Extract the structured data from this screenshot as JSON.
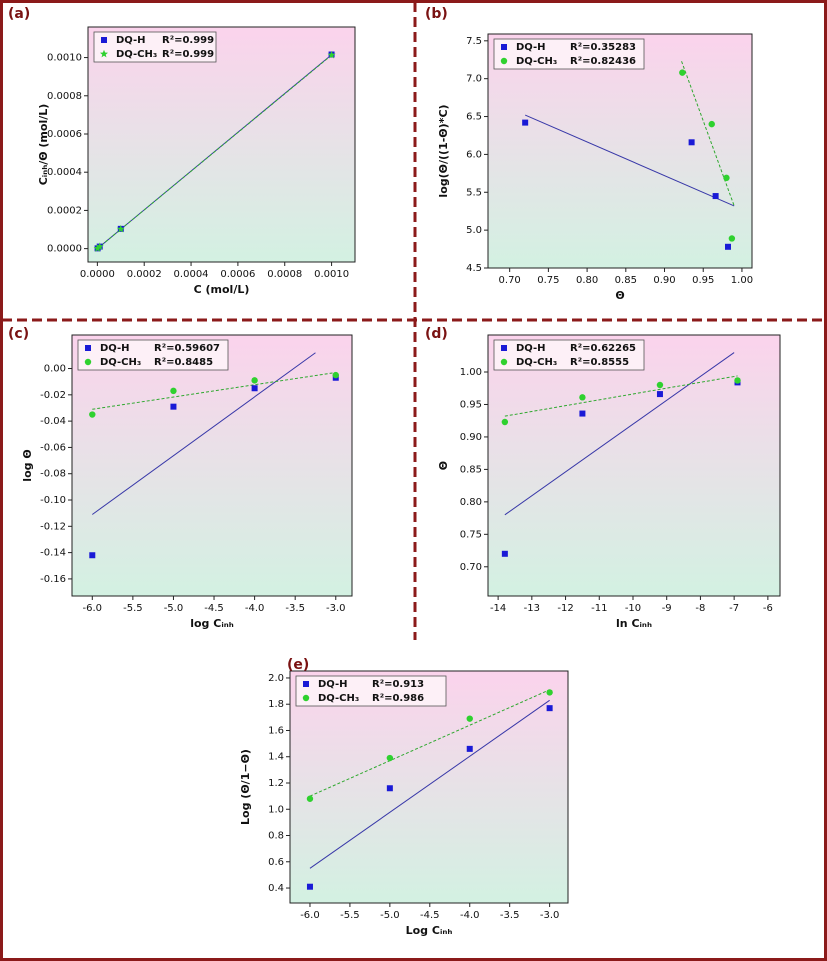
{
  "chart_data": [
    {
      "type": "scatter",
      "label": "(a)",
      "xlabel": "C (mol/L)",
      "ylabel": "Cᵢₙₕ/Θ (mol/L)",
      "xlim": [
        -4e-05,
        0.0011
      ],
      "ylim": [
        -7e-05,
        0.00116
      ],
      "xticks": [
        {
          "value": 0,
          "label": "0.0000"
        },
        {
          "value": 0.0002,
          "label": "0.0002"
        },
        {
          "value": 0.0004,
          "label": "0.0004"
        },
        {
          "value": 0.0006,
          "label": "0.0006"
        },
        {
          "value": 0.0008,
          "label": "0.0008"
        },
        {
          "value": 0.001,
          "label": "0.0010"
        }
      ],
      "yticks": [
        {
          "value": 0,
          "label": "0.0000"
        },
        {
          "value": 0.0002,
          "label": "0.0002"
        },
        {
          "value": 0.0004,
          "label": "0.0004"
        },
        {
          "value": 0.0006,
          "label": "0.0006"
        },
        {
          "value": 0.0008,
          "label": "0.0008"
        },
        {
          "value": 0.001,
          "label": "0.0010"
        }
      ],
      "series": [
        {
          "name": "DQ-H",
          "r2": "R²=0.999",
          "color": "#1a1ad6",
          "marker": "square",
          "line_color": "#3838a8",
          "x": [
            1e-06,
            1e-05,
            0.0001,
            0.001
          ],
          "values": [
            1.4e-06,
            1.07e-05,
            0.0001035,
            0.001016
          ],
          "fit": {
            "x": [
              1e-06,
              0.001
            ],
            "values": [
              1e-06,
              0.001015
            ]
          }
        },
        {
          "name": "DQ-CH₃",
          "r2": "R²=0.999",
          "color": "#2fd12f",
          "marker": "star",
          "line_color": "#2fa82f",
          "x": [
            1e-06,
            1e-05,
            0.0001,
            0.001
          ],
          "values": [
            1.1e-06,
            1.04e-05,
            0.000102,
            0.001013
          ],
          "fit": {
            "x": [
              1e-06,
              0.001
            ],
            "values": [
              1e-06,
              0.001013
            ]
          }
        }
      ]
    },
    {
      "type": "scatter",
      "label": "(b)",
      "xlabel": "Θ",
      "ylabel": "log(Θ/((1-Θ)*C)",
      "xlim": [
        0.672,
        1.013
      ],
      "ylim": [
        4.5,
        7.59
      ],
      "xticks": [
        {
          "value": 0.7,
          "label": "0.70"
        },
        0.75,
        {
          "value": 0.8,
          "label": "0.80"
        },
        0.85,
        {
          "value": 0.9,
          "label": "0.90"
        },
        0.95,
        {
          "value": 1,
          "label": "1.00"
        }
      ],
      "yticks": [
        4.5,
        {
          "value": 5,
          "label": "5.0"
        },
        5.5,
        {
          "value": 6,
          "label": "6.0"
        },
        6.5,
        {
          "value": 7,
          "label": "7.0"
        },
        7.5
      ],
      "series": [
        {
          "name": "DQ-H",
          "r2": "R²=0.35283",
          "color": "#1a1ad6",
          "marker": "square",
          "line_color": "#3838a8",
          "x": [
            0.72,
            0.935,
            0.966,
            0.982
          ],
          "values": [
            6.42,
            6.16,
            5.45,
            4.78
          ],
          "fit": {
            "x": [
              0.72,
              0.99
            ],
            "values": [
              6.52,
              5.32
            ]
          }
        },
        {
          "name": "DQ-CH₃",
          "r2": "R²=0.82436",
          "color": "#2fd12f",
          "marker": "circle",
          "line_color": "#2fa82f",
          "x": [
            0.923,
            0.961,
            0.98,
            0.987
          ],
          "values": [
            7.08,
            6.4,
            5.69,
            4.89
          ],
          "fit": {
            "x": [
              0.922,
              0.99
            ],
            "values": [
              7.23,
              5.32
            ]
          }
        }
      ]
    },
    {
      "type": "scatter",
      "label": "(c)",
      "xlabel": "log Cᵢₙₕ",
      "ylabel": "log Θ",
      "xlim": [
        -6.25,
        -2.8
      ],
      "ylim": [
        -0.173,
        0.0255
      ],
      "xticks": [
        {
          "value": -6,
          "label": "-6.0"
        },
        -5.5,
        {
          "value": -5,
          "label": "-5.0"
        },
        -4.5,
        {
          "value": -4,
          "label": "-4.0"
        },
        -3.5,
        {
          "value": -3,
          "label": "-3.0"
        }
      ],
      "yticks": [
        {
          "value": 0,
          "label": "0.00"
        },
        -0.02,
        -0.04,
        -0.06,
        -0.08,
        {
          "value": -0.1,
          "label": "-0.10"
        },
        -0.12,
        -0.14,
        {
          "value": -0.16,
          "label": "-0.16"
        }
      ],
      "series": [
        {
          "name": "DQ-H",
          "r2": "R²=0.59607",
          "color": "#1a1ad6",
          "marker": "square",
          "line_color": "#3838a8",
          "x": [
            -6,
            -5,
            -4,
            -3
          ],
          "values": [
            -0.142,
            -0.029,
            -0.015,
            -0.007
          ],
          "fit": {
            "x": [
              -6,
              -3.25
            ],
            "values": [
              -0.111,
              0.012
            ]
          }
        },
        {
          "name": "DQ-CH₃",
          "r2": "R²=0.8485",
          "color": "#2fd12f",
          "marker": "circle",
          "line_color": "#2fa82f",
          "x": [
            -6,
            -5,
            -4,
            -3
          ],
          "values": [
            -0.035,
            -0.017,
            -0.009,
            -0.005
          ],
          "fit": {
            "x": [
              -6,
              -3
            ],
            "values": [
              -0.031,
              -0.003
            ]
          }
        }
      ]
    },
    {
      "type": "scatter",
      "label": "(d)",
      "xlabel": "ln Cᵢₙₕ",
      "ylabel": "Θ",
      "xlim": [
        -14.3,
        -5.64
      ],
      "ylim": [
        0.655,
        1.057
      ],
      "xticks": [
        -14,
        -13,
        -12,
        -11,
        -10,
        -9,
        -8,
        -7,
        -6
      ],
      "yticks": [
        {
          "value": 0.7,
          "label": "0.70"
        },
        0.75,
        {
          "value": 0.8,
          "label": "0.80"
        },
        0.85,
        {
          "value": 0.9,
          "label": "0.90"
        },
        0.95,
        {
          "value": 1,
          "label": "1.00"
        }
      ],
      "series": [
        {
          "name": "DQ-H",
          "r2": "R²=0.62265",
          "color": "#1a1ad6",
          "marker": "square",
          "line_color": "#3838a8",
          "x": [
            -13.8,
            -11.5,
            -9.2,
            -6.9
          ],
          "values": [
            0.72,
            0.936,
            0.966,
            0.984
          ],
          "fit": {
            "x": [
              -13.8,
              -7
            ],
            "values": [
              0.78,
              1.03
            ]
          }
        },
        {
          "name": "DQ-CH₃",
          "r2": "R²=0.8555",
          "color": "#2fd12f",
          "marker": "circle",
          "line_color": "#2fa82f",
          "x": [
            -13.8,
            -11.5,
            -9.2,
            -6.9
          ],
          "values": [
            0.923,
            0.961,
            0.98,
            0.987
          ],
          "fit": {
            "x": [
              -13.8,
              -6.9
            ],
            "values": [
              0.932,
              0.994
            ]
          }
        }
      ]
    },
    {
      "type": "scatter",
      "label": "(e)",
      "xlabel": "Log Cᵢₙₕ",
      "ylabel": "Log (Θ/1−Θ)",
      "xlim": [
        -6.25,
        -2.77
      ],
      "ylim": [
        0.286,
        2.053
      ],
      "xticks": [
        {
          "value": -6,
          "label": "-6.0"
        },
        -5.5,
        {
          "value": -5,
          "label": "-5.0"
        },
        -4.5,
        {
          "value": -4,
          "label": "-4.0"
        },
        -3.5,
        {
          "value": -3,
          "label": "-3.0"
        }
      ],
      "yticks": [
        0.4,
        0.6,
        0.8,
        {
          "value": 1,
          "label": "1.0"
        },
        1.2,
        1.4,
        1.6,
        1.8,
        {
          "value": 2,
          "label": "2.0"
        }
      ],
      "series": [
        {
          "name": "DQ-H",
          "r2": "R²=0.913",
          "color": "#1a1ad6",
          "marker": "square",
          "line_color": "#3838a8",
          "x": [
            -6,
            -5,
            -4,
            -3
          ],
          "values": [
            0.41,
            1.16,
            1.46,
            1.77
          ],
          "fit": {
            "x": [
              -6,
              -3
            ],
            "values": [
              0.55,
              1.83
            ]
          }
        },
        {
          "name": "DQ-CH₃",
          "r2": "R²=0.986",
          "color": "#2fd12f",
          "marker": "circle",
          "line_color": "#2fa82f",
          "x": [
            -6,
            -5,
            -4,
            -3
          ],
          "values": [
            1.08,
            1.39,
            1.69,
            1.89
          ],
          "fit": {
            "x": [
              -6,
              -3
            ],
            "values": [
              1.1,
              1.91
            ]
          }
        }
      ]
    }
  ]
}
